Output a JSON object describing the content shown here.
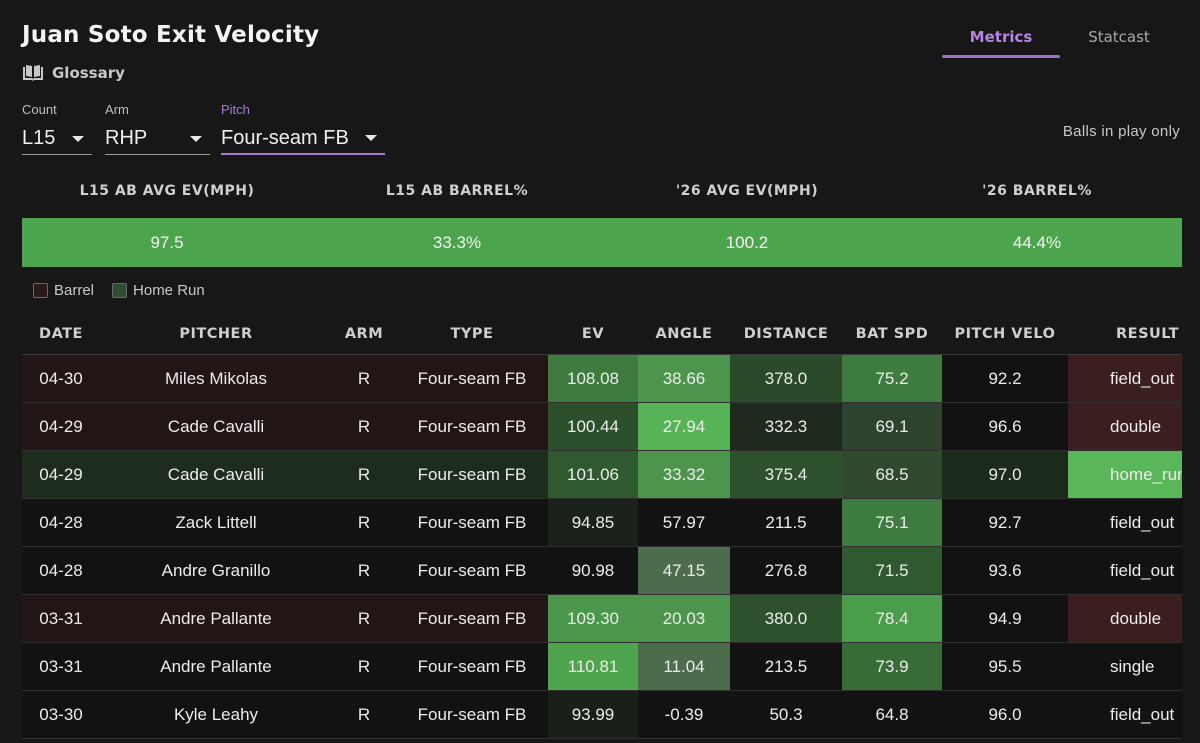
{
  "header": {
    "title": "Juan Soto Exit Velocity",
    "glossary_label": "Glossary",
    "glossary_icon": "book-icon",
    "balls_in_play": "Balls in play only"
  },
  "tabs": [
    {
      "label": "Metrics",
      "active": true
    },
    {
      "label": "Statcast",
      "active": false
    }
  ],
  "filters": {
    "count": {
      "label": "Count",
      "value": "L15"
    },
    "arm": {
      "label": "Arm",
      "value": "RHP"
    },
    "pitch": {
      "label": "Pitch",
      "value": "Four-seam FB"
    }
  },
  "summary": {
    "headers": [
      "L15 AB AVG EV(MPH)",
      "L15 AB BARREL%",
      "'26 AVG EV(MPH)",
      "'26 BARREL%"
    ],
    "values": [
      "97.5",
      "33.3%",
      "100.2",
      "44.4%"
    ]
  },
  "legend": {
    "barrel": "Barrel",
    "home_run": "Home Run"
  },
  "colors": {
    "accent": "#a77bd8",
    "summary_bar": "#4ca44c",
    "barrel_row": "#211515",
    "home_run_row": "#1e2c1e",
    "default_row": "#121212",
    "barrel_swatch": "#2a1a1a",
    "home_run_swatch": "#2f4d2f"
  },
  "table": {
    "columns": [
      "DATE",
      "PITCHER",
      "ARM",
      "TYPE",
      "EV",
      "ANGLE",
      "DISTANCE",
      "BAT SPD",
      "PITCH VELO",
      "RESULT"
    ],
    "rows": [
      {
        "date": "04-30",
        "pitcher": "Miles Mikolas",
        "arm": "R",
        "type": "Four-seam FB",
        "ev": "108.08",
        "angle": "38.66",
        "distance": "378.0",
        "bat_spd": "75.2",
        "pitch_velo": "92.2",
        "result": "field_out",
        "row_kind": "barrel",
        "heat": {
          "ev": "#3f7a3f",
          "angle": "#4d954d",
          "distance": "#2a4a2a",
          "bat": "#3e7b3e",
          "velo": "#121212",
          "result": "#3a1f1e"
        }
      },
      {
        "date": "04-29",
        "pitcher": "Cade Cavalli",
        "arm": "R",
        "type": "Four-seam FB",
        "ev": "100.44",
        "angle": "27.94",
        "distance": "332.3",
        "bat_spd": "69.1",
        "pitch_velo": "96.6",
        "result": "double",
        "row_kind": "barrel",
        "heat": {
          "ev": "#2c4f2c",
          "angle": "#56b456",
          "distance": "#1e2a1e",
          "bat": "#2d432d",
          "velo": "#121212",
          "result": "#3a1f1e"
        }
      },
      {
        "date": "04-29",
        "pitcher": "Cade Cavalli",
        "arm": "R",
        "type": "Four-seam FB",
        "ev": "101.06",
        "angle": "33.32",
        "distance": "375.4",
        "bat_spd": "68.5",
        "pitch_velo": "97.0",
        "result": "home_run",
        "row_kind": "home_run",
        "heat": {
          "ev": "#2f592f",
          "angle": "#4d954d",
          "distance": "#2d502d",
          "bat": "#2f4a2f",
          "velo": "#1b2a1b",
          "result": "#59b659"
        }
      },
      {
        "date": "04-28",
        "pitcher": "Zack Littell",
        "arm": "R",
        "type": "Four-seam FB",
        "ev": "94.85",
        "angle": "57.97",
        "distance": "211.5",
        "bat_spd": "75.1",
        "pitch_velo": "92.7",
        "result": "field_out",
        "row_kind": "default",
        "heat": {
          "ev": "#1b221b",
          "angle": "#121212",
          "distance": "#121212",
          "bat": "#3e7b3e",
          "velo": "#121212",
          "result": "#121212"
        }
      },
      {
        "date": "04-28",
        "pitcher": "Andre Granillo",
        "arm": "R",
        "type": "Four-seam FB",
        "ev": "90.98",
        "angle": "47.15",
        "distance": "276.8",
        "bat_spd": "71.5",
        "pitch_velo": "93.6",
        "result": "field_out",
        "row_kind": "default",
        "heat": {
          "ev": "#121212",
          "angle": "#4c6c4c",
          "distance": "#121212",
          "bat": "#2f5a2f",
          "velo": "#121212",
          "result": "#121212"
        }
      },
      {
        "date": "03-31",
        "pitcher": "Andre Pallante",
        "arm": "R",
        "type": "Four-seam FB",
        "ev": "109.30",
        "angle": "20.03",
        "distance": "380.0",
        "bat_spd": "78.4",
        "pitch_velo": "94.9",
        "result": "double",
        "row_kind": "barrel",
        "heat": {
          "ev": "#4a964a",
          "angle": "#4d954d",
          "distance": "#2d502d",
          "bat": "#4a9d4a",
          "velo": "#121212",
          "result": "#3a1f1e"
        }
      },
      {
        "date": "03-31",
        "pitcher": "Andre Pallante",
        "arm": "R",
        "type": "Four-seam FB",
        "ev": "110.81",
        "angle": "11.04",
        "distance": "213.5",
        "bat_spd": "73.9",
        "pitch_velo": "95.5",
        "result": "single",
        "row_kind": "default",
        "heat": {
          "ev": "#4ea54e",
          "angle": "#4c6c4c",
          "distance": "#121212",
          "bat": "#376c37",
          "velo": "#121212",
          "result": "#121212"
        }
      },
      {
        "date": "03-30",
        "pitcher": "Kyle Leahy",
        "arm": "R",
        "type": "Four-seam FB",
        "ev": "93.99",
        "angle": "-0.39",
        "distance": "50.3",
        "bat_spd": "64.8",
        "pitch_velo": "96.0",
        "result": "field_out",
        "row_kind": "default",
        "heat": {
          "ev": "#192019",
          "angle": "#121212",
          "distance": "#121212",
          "bat": "#121212",
          "velo": "#121212",
          "result": "#121212"
        }
      }
    ]
  }
}
